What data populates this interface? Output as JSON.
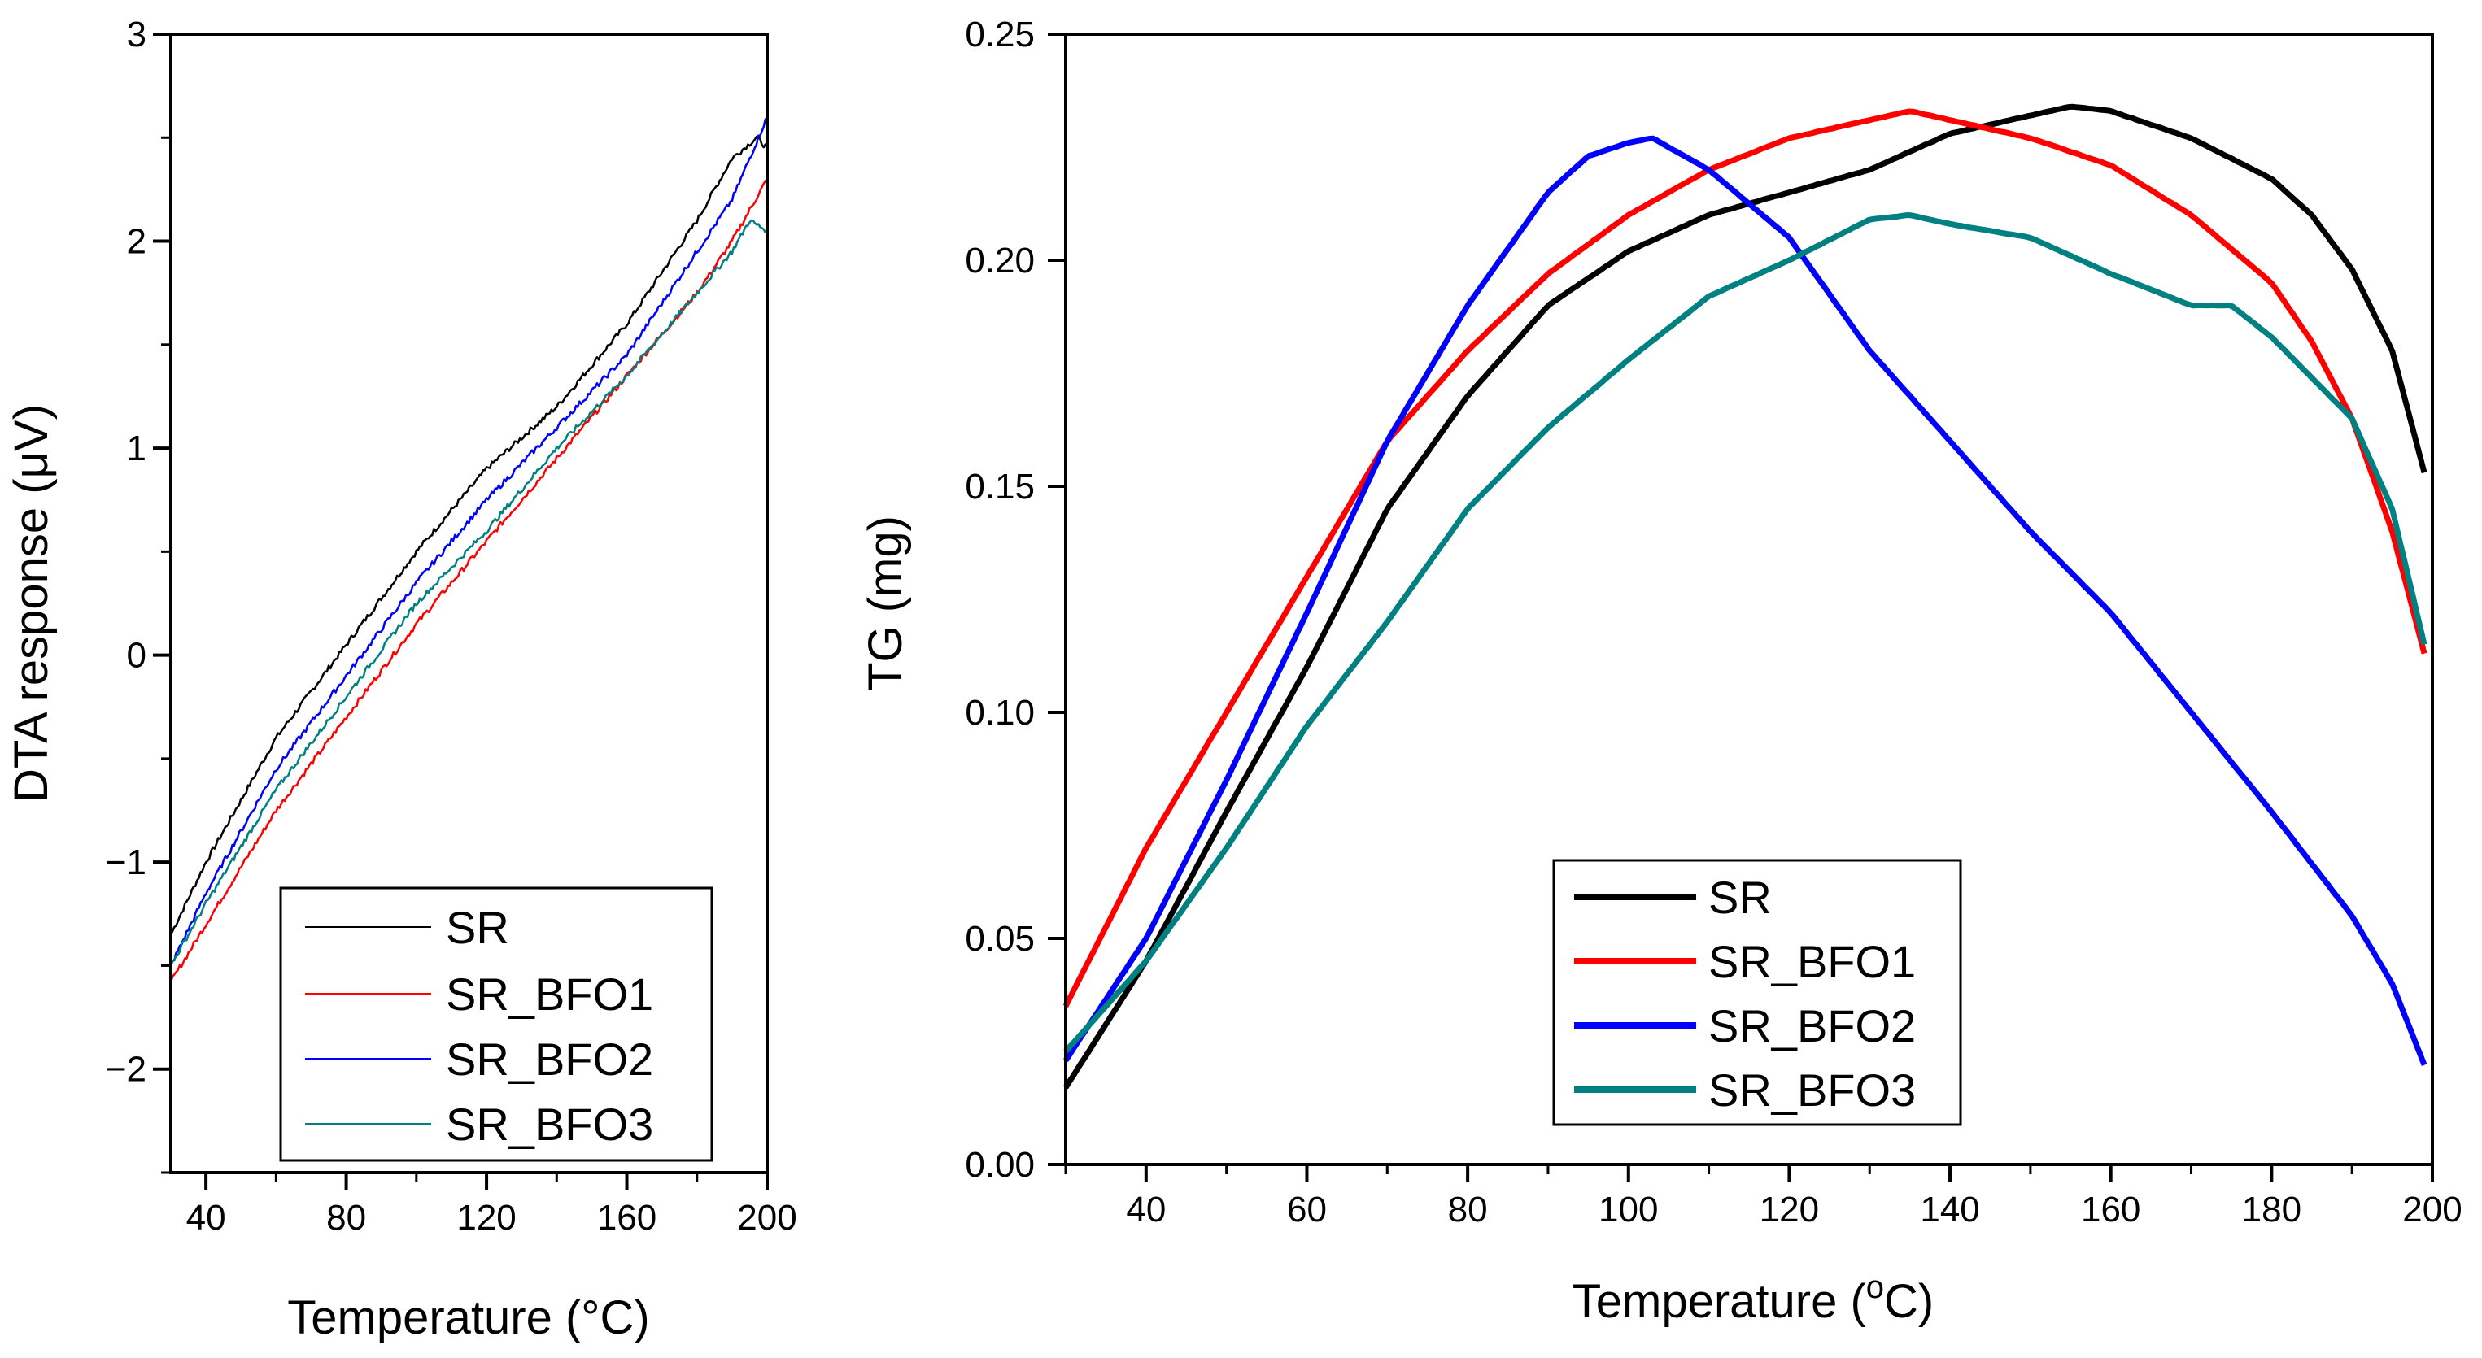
{
  "chart_data": [
    {
      "type": "line",
      "ylabel": "DTA response (μV)",
      "xlabel_text": "Temperature (°C)",
      "xlim": [
        30,
        200
      ],
      "ylim": [
        -2.5,
        3
      ],
      "xticks": [
        "40",
        "80",
        "120",
        "160",
        "200"
      ],
      "yticks": [
        "−2",
        "−1",
        "0",
        "1",
        "2",
        "3"
      ],
      "grid": false,
      "legend_position": "bottom-right",
      "series": [
        {
          "name": "SR",
          "color": "#000000",
          "x": [
            30,
            40,
            60,
            80,
            100,
            120,
            140,
            160,
            180,
            190,
            197,
            200
          ],
          "y": [
            -1.35,
            -1.0,
            -0.4,
            0.05,
            0.5,
            0.9,
            1.2,
            1.6,
            2.1,
            2.4,
            2.5,
            2.45
          ]
        },
        {
          "name": "SR_BFO1",
          "color": "#ff0000",
          "x": [
            30,
            40,
            60,
            80,
            100,
            120,
            140,
            160,
            180,
            190,
            200
          ],
          "y": [
            -1.58,
            -1.3,
            -0.75,
            -0.3,
            0.15,
            0.55,
            0.95,
            1.35,
            1.75,
            2.0,
            2.3
          ]
        },
        {
          "name": "SR_BFO2",
          "color": "#0000ff",
          "x": [
            30,
            40,
            60,
            80,
            100,
            120,
            140,
            160,
            180,
            190,
            200
          ],
          "y": [
            -1.5,
            -1.15,
            -0.55,
            -0.1,
            0.35,
            0.75,
            1.1,
            1.45,
            1.95,
            2.2,
            2.6
          ]
        },
        {
          "name": "SR_BFO3",
          "color": "#008080",
          "x": [
            30,
            40,
            60,
            80,
            100,
            120,
            140,
            160,
            180,
            190,
            195,
            200
          ],
          "y": [
            -1.5,
            -1.2,
            -0.65,
            -0.2,
            0.25,
            0.6,
            1.0,
            1.35,
            1.75,
            1.95,
            2.1,
            2.05
          ]
        }
      ]
    },
    {
      "type": "line",
      "ylabel": "TG (mg)",
      "xlabel_text": "Temperature (",
      "xlabel_sup": "o",
      "xlabel_tail": "C)",
      "xlim": [
        30,
        200
      ],
      "ylim": [
        0,
        0.25
      ],
      "xticks": [
        "40",
        "60",
        "80",
        "100",
        "120",
        "140",
        "160",
        "180",
        "200"
      ],
      "yticks": [
        "0.00",
        "0.05",
        "0.10",
        "0.15",
        "0.20",
        "0.25"
      ],
      "grid": false,
      "legend_position": "bottom-center",
      "series": [
        {
          "name": "SR",
          "color": "#000000",
          "x": [
            30,
            40,
            50,
            60,
            70,
            80,
            90,
            100,
            110,
            120,
            130,
            140,
            150,
            155,
            160,
            170,
            180,
            185,
            190,
            195,
            199
          ],
          "y": [
            0.017,
            0.045,
            0.078,
            0.11,
            0.145,
            0.17,
            0.19,
            0.202,
            0.21,
            0.215,
            0.22,
            0.228,
            0.232,
            0.234,
            0.233,
            0.227,
            0.218,
            0.21,
            0.198,
            0.18,
            0.153
          ]
        },
        {
          "name": "SR_BFO1",
          "color": "#ff0000",
          "x": [
            30,
            40,
            50,
            60,
            70,
            80,
            90,
            100,
            110,
            120,
            130,
            135,
            140,
            150,
            160,
            170,
            180,
            185,
            190,
            195,
            199
          ],
          "y": [
            0.035,
            0.07,
            0.1,
            0.13,
            0.16,
            0.18,
            0.197,
            0.21,
            0.22,
            0.227,
            0.231,
            0.233,
            0.231,
            0.227,
            0.221,
            0.21,
            0.195,
            0.182,
            0.165,
            0.14,
            0.113
          ]
        },
        {
          "name": "SR_BFO2",
          "color": "#0000ff",
          "x": [
            30,
            40,
            50,
            60,
            70,
            80,
            90,
            95,
            100,
            103,
            110,
            120,
            130,
            140,
            150,
            160,
            170,
            180,
            190,
            195,
            199
          ],
          "y": [
            0.023,
            0.05,
            0.085,
            0.122,
            0.16,
            0.19,
            0.215,
            0.223,
            0.226,
            0.227,
            0.22,
            0.205,
            0.18,
            0.16,
            0.14,
            0.122,
            0.1,
            0.078,
            0.055,
            0.04,
            0.022
          ]
        },
        {
          "name": "SR_BFO3",
          "color": "#008080",
          "x": [
            30,
            40,
            50,
            60,
            70,
            80,
            90,
            100,
            110,
            120,
            130,
            135,
            140,
            150,
            160,
            170,
            175,
            180,
            190,
            195,
            199
          ],
          "y": [
            0.025,
            0.045,
            0.07,
            0.097,
            0.12,
            0.145,
            0.163,
            0.178,
            0.192,
            0.2,
            0.209,
            0.21,
            0.208,
            0.205,
            0.197,
            0.19,
            0.19,
            0.183,
            0.165,
            0.145,
            0.115
          ]
        }
      ]
    }
  ]
}
